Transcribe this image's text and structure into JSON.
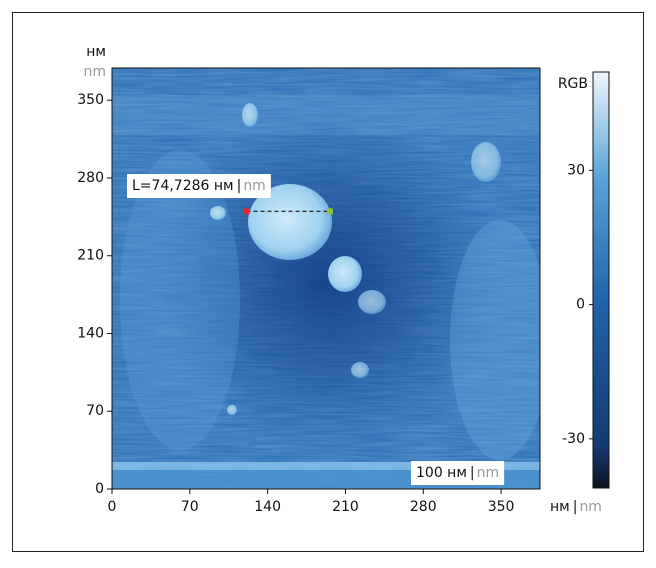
{
  "chart_data": {
    "type": "image",
    "xlim": [
      0,
      385
    ],
    "ylim": [
      0,
      379
    ],
    "xticks": [
      0,
      70,
      140,
      210,
      280,
      350
    ],
    "yticks": [
      0,
      70,
      140,
      210,
      280,
      350
    ],
    "x_unit": [
      "нм",
      "|",
      "nm"
    ],
    "y_unit": [
      "нм",
      "nm"
    ],
    "colorbar": {
      "label": "RGB",
      "zlim": [
        -41,
        52
      ],
      "ticks": [
        -30,
        0,
        30
      ]
    },
    "measurement": {
      "x": [
        121,
        196
      ],
      "y": 250,
      "start_color": "#e8262a",
      "end_color": "#8cc63f",
      "label": [
        "L=74,7286 нм",
        "|",
        "nm"
      ]
    },
    "scale_bar_label": [
      "100 нм",
      "|",
      "nm"
    ]
  }
}
